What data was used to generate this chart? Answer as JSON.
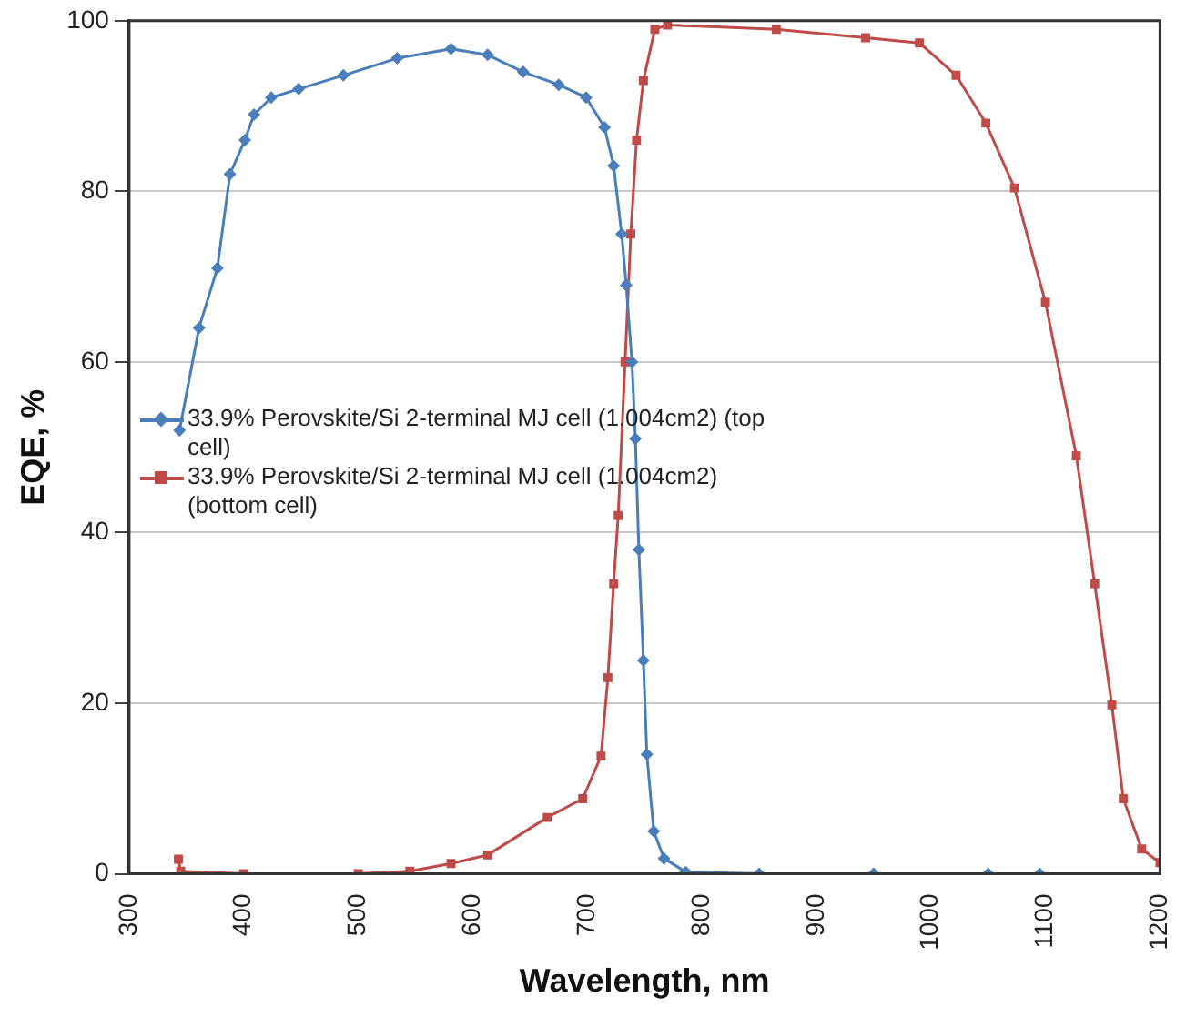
{
  "chart_data": {
    "type": "line",
    "xlabel": "Wavelength, nm",
    "ylabel": "EQE, %",
    "xlim": [
      300,
      1200
    ],
    "xticks": [
      300,
      400,
      500,
      600,
      700,
      800,
      900,
      1000,
      1100,
      1200
    ],
    "ylim": [
      0,
      100
    ],
    "yticks": [
      0,
      20,
      40,
      60,
      80,
      100
    ],
    "grid": "y",
    "legend": "left",
    "series": [
      {
        "name": "33.9% Perovskite/Si 2-terminal MJ cell (1.004cm2) (top cell)",
        "color": "#4a7ebb",
        "marker": "diamond",
        "x": [
          344,
          361,
          377,
          388,
          401,
          409,
          424,
          448,
          487,
          534,
          581,
          613,
          644,
          675,
          699,
          715,
          723,
          730,
          734,
          739,
          742,
          745,
          749,
          752,
          758,
          767,
          786,
          850,
          950,
          1050,
          1095
        ],
        "values": [
          52,
          64,
          71,
          82,
          86,
          89,
          91,
          92,
          93.6,
          95.6,
          96.7,
          96,
          94,
          92.5,
          91,
          87.5,
          83,
          75,
          69,
          60,
          51,
          38,
          25,
          14,
          5,
          1.8,
          0.2,
          0,
          0,
          0,
          0
        ]
      },
      {
        "name": "33.9% Perovskite/Si 2-terminal MJ cell (1.004cm2) (bottom cell)",
        "color": "#be4b48",
        "marker": "square",
        "x": [
          343,
          345,
          400,
          500,
          545,
          581,
          613,
          665,
          696,
          712,
          718,
          723,
          727,
          733,
          738,
          743,
          749,
          759,
          770,
          865,
          943,
          990,
          1022,
          1048,
          1073,
          1100,
          1127,
          1143,
          1158,
          1168,
          1184,
          1200
        ],
        "values": [
          1.7,
          0.3,
          0,
          0,
          0.3,
          1.2,
          2.2,
          6.6,
          8.8,
          13.8,
          23,
          34,
          42,
          60,
          75,
          86,
          93,
          99,
          99.5,
          99,
          98,
          97.4,
          93.6,
          88,
          80.4,
          67,
          49,
          34,
          19.8,
          8.8,
          2.9,
          1.3
        ]
      }
    ]
  }
}
